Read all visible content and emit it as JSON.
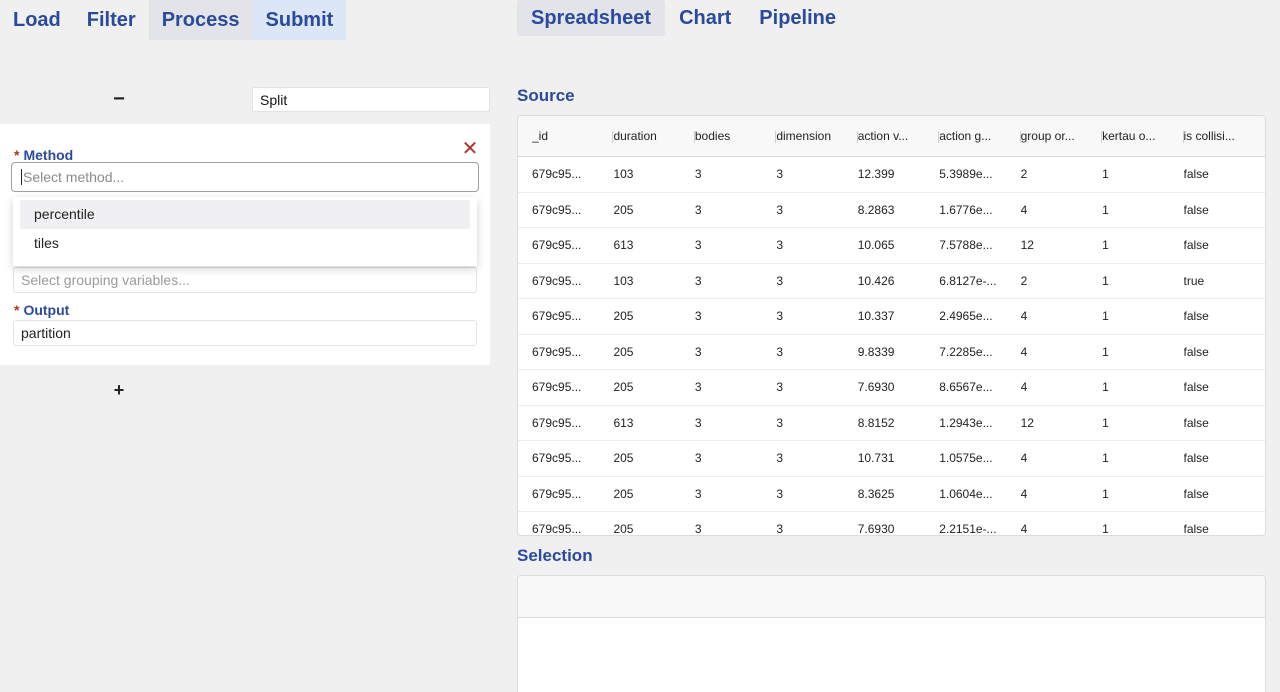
{
  "nav_left": {
    "tabs": [
      {
        "label": "Load"
      },
      {
        "label": "Filter"
      },
      {
        "label": "Process"
      },
      {
        "label": "Submit"
      }
    ]
  },
  "nav_right": {
    "tabs": [
      {
        "label": "Spreadsheet"
      },
      {
        "label": "Chart"
      },
      {
        "label": "Pipeline"
      }
    ]
  },
  "step": {
    "minus_label": "−",
    "name": "Split",
    "plus_label": "+"
  },
  "panel": {
    "close_label": "✕",
    "required_mark": "*",
    "method_label": "Method",
    "method_placeholder": "Select method...",
    "method_options": [
      "percentile",
      "tiles"
    ],
    "grouping_placeholder": "Select grouping variables...",
    "output_label": "Output",
    "output_value": "partition"
  },
  "source": {
    "title": "Source",
    "columns": [
      "_id",
      "duration",
      "bodies",
      "dimension",
      "action v...",
      "action g...",
      "group or...",
      "kertau o...",
      "is collisi..."
    ],
    "rows": [
      [
        "679c95...",
        "103",
        "3",
        "3",
        "12.399",
        "5.3989e...",
        "2",
        "1",
        "false"
      ],
      [
        "679c95...",
        "205",
        "3",
        "3",
        "8.2863",
        "1.6776e...",
        "4",
        "1",
        "false"
      ],
      [
        "679c95...",
        "613",
        "3",
        "3",
        "10.065",
        "7.5788e...",
        "12",
        "1",
        "false"
      ],
      [
        "679c95...",
        "103",
        "3",
        "3",
        "10.426",
        "6.8127e-...",
        "2",
        "1",
        "true"
      ],
      [
        "679c95...",
        "205",
        "3",
        "3",
        "10.337",
        "2.4965e...",
        "4",
        "1",
        "false"
      ],
      [
        "679c95...",
        "205",
        "3",
        "3",
        "9.8339",
        "7.2285e...",
        "4",
        "1",
        "false"
      ],
      [
        "679c95...",
        "205",
        "3",
        "3",
        "7.6930",
        "8.6567e...",
        "4",
        "1",
        "false"
      ],
      [
        "679c95...",
        "613",
        "3",
        "3",
        "8.8152",
        "1.2943e...",
        "12",
        "1",
        "false"
      ],
      [
        "679c95...",
        "205",
        "3",
        "3",
        "10.731",
        "1.0575e...",
        "4",
        "1",
        "false"
      ],
      [
        "679c95...",
        "205",
        "3",
        "3",
        "8.3625",
        "1.0604e...",
        "4",
        "1",
        "false"
      ],
      [
        "679c95...",
        "205",
        "3",
        "3",
        "7.6930",
        "2.2151e-...",
        "4",
        "1",
        "false"
      ]
    ]
  },
  "selection": {
    "title": "Selection"
  }
}
